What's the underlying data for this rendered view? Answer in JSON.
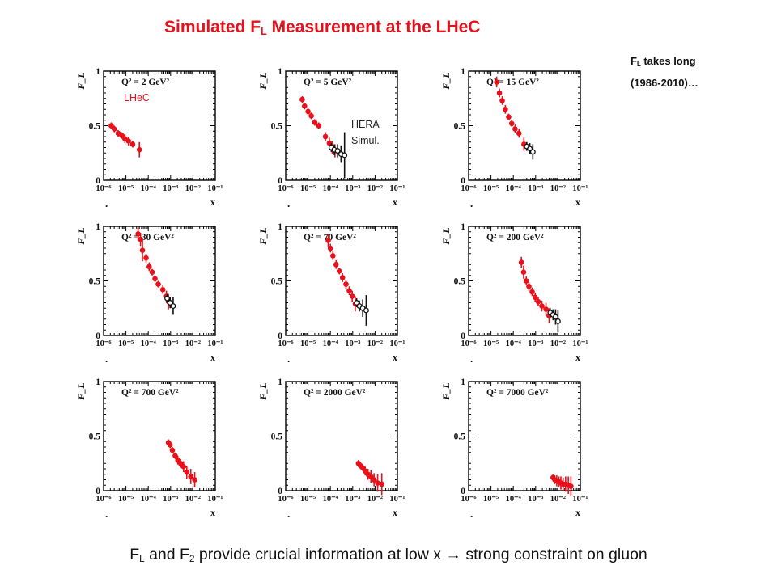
{
  "title": {
    "main": "Simulated F",
    "sub": "L",
    "rest": " Measurement at the LHeC"
  },
  "side_note": {
    "line1_main": "F",
    "line1_sub": "L",
    "line1_rest": " takes long",
    "line2": "(1986-2010)…"
  },
  "footer": {
    "p1": "F",
    "s1": "L",
    "p2": " and F",
    "s2": "2",
    "p3": " provide crucial information at low x ",
    "arrow": "→",
    "p4": " strong constraint on gluon"
  },
  "annotations": {
    "lhec": "LHeC",
    "hera_line1": "HERA",
    "hera_line2": "Simul."
  },
  "colors": {
    "lhec": "#e8101a",
    "hera": "#111111",
    "title": "#e8101a"
  },
  "chart_data": [
    {
      "type": "scatter",
      "log_x": true,
      "xlim": [
        "1e-6",
        "1e-1"
      ],
      "ylim": [
        0,
        1
      ],
      "xlabel": "x",
      "ylabel": "F_L",
      "q2_label": "Q² = 2 GeV²",
      "x_ticks": [
        "10⁻⁶",
        "10⁻⁵",
        "10⁻⁴",
        "10⁻³",
        "10⁻²",
        "10⁻¹"
      ],
      "y_ticks": [
        "0",
        "0.5",
        "1"
      ],
      "lhec": [
        [
          2.2e-06,
          0.5,
          0.03
        ],
        [
          3e-06,
          0.47,
          0.03
        ],
        [
          4.5e-06,
          0.43,
          0.03
        ],
        [
          6.5e-06,
          0.41,
          0.03
        ],
        [
          9e-06,
          0.38,
          0.04
        ],
        [
          1.3e-05,
          0.36,
          0.04
        ],
        [
          2e-05,
          0.33,
          0.03
        ],
        [
          4e-05,
          0.28,
          0.07
        ]
      ],
      "hera": []
    },
    {
      "type": "scatter",
      "log_x": true,
      "xlim": [
        "1e-6",
        "1e-1"
      ],
      "ylim": [
        0,
        1
      ],
      "xlabel": "x",
      "ylabel": "F_L",
      "q2_label": "Q² = 5 GeV²",
      "x_ticks": [
        "10⁻⁶",
        "10⁻⁵",
        "10⁻⁴",
        "10⁻³",
        "10⁻²",
        "10⁻¹"
      ],
      "y_ticks": [
        "0",
        "0.5",
        "1"
      ],
      "lhec": [
        [
          5.5e-06,
          0.74,
          0.03
        ],
        [
          7e-06,
          0.68,
          0.03
        ],
        [
          1e-05,
          0.63,
          0.03
        ],
        [
          1.4e-05,
          0.59,
          0.03
        ],
        [
          2e-05,
          0.53,
          0.03
        ],
        [
          3e-05,
          0.5,
          0.03
        ],
        [
          6e-05,
          0.4,
          0.04
        ],
        [
          9e-05,
          0.34,
          0.05
        ],
        [
          0.00012,
          0.3,
          0.06
        ],
        [
          0.00016,
          0.27,
          0.06
        ]
      ],
      "hera": [
        [
          0.00011,
          0.3,
          0.04
        ],
        [
          0.00015,
          0.28,
          0.05
        ],
        [
          0.00021,
          0.27,
          0.06
        ],
        [
          0.0003,
          0.24,
          0.08
        ],
        [
          0.00043,
          0.23,
          0.21
        ]
      ]
    },
    {
      "type": "scatter",
      "log_x": true,
      "xlim": [
        "1e-6",
        "1e-1"
      ],
      "ylim": [
        0,
        1
      ],
      "xlabel": "x",
      "ylabel": "F_L",
      "q2_label": "Q² = 15 GeV²",
      "x_ticks": [
        "10⁻⁶",
        "10⁻⁵",
        "10⁻⁴",
        "10⁻³",
        "10⁻²",
        "10⁻¹"
      ],
      "y_ticks": [
        "0",
        "0.5",
        "1"
      ],
      "lhec": [
        [
          1.8e-05,
          0.9,
          0.05
        ],
        [
          2.4e-05,
          0.8,
          0.04
        ],
        [
          3.2e-05,
          0.73,
          0.04
        ],
        [
          4.4e-05,
          0.65,
          0.04
        ],
        [
          6.2e-05,
          0.58,
          0.03
        ],
        [
          8.5e-05,
          0.52,
          0.03
        ],
        [
          0.00012,
          0.47,
          0.04
        ],
        [
          0.00018,
          0.43,
          0.04
        ],
        [
          0.0003,
          0.33,
          0.06
        ]
      ],
      "hera": [
        [
          0.0004,
          0.31,
          0.04
        ],
        [
          0.00055,
          0.29,
          0.05
        ],
        [
          0.00075,
          0.26,
          0.07
        ]
      ]
    },
    {
      "type": "scatter",
      "log_x": true,
      "xlim": [
        "1e-6",
        "1e-1"
      ],
      "ylim": [
        0,
        1
      ],
      "xlabel": "x",
      "ylabel": "F_L",
      "q2_label": "Q² = 30 GeV²",
      "x_ticks": [
        "10⁻⁶",
        "10⁻⁵",
        "10⁻⁴",
        "10⁻³",
        "10⁻²",
        "10⁻¹"
      ],
      "y_ticks": [
        "0",
        "0.5",
        "1"
      ],
      "lhec": [
        [
          3.5e-05,
          0.93,
          0.06
        ],
        [
          4.5e-05,
          0.88,
          0.06
        ],
        [
          5.5e-05,
          0.78,
          0.1
        ],
        [
          8e-05,
          0.71,
          0.04
        ],
        [
          0.00011,
          0.63,
          0.04
        ],
        [
          0.00015,
          0.58,
          0.03
        ],
        [
          0.0002,
          0.52,
          0.03
        ],
        [
          0.00028,
          0.47,
          0.03
        ],
        [
          0.00045,
          0.42,
          0.04
        ],
        [
          0.00065,
          0.36,
          0.05
        ],
        [
          0.0008,
          0.31,
          0.07
        ]
      ],
      "hera": [
        [
          0.0007,
          0.34,
          0.04
        ],
        [
          0.00095,
          0.3,
          0.05
        ],
        [
          0.0013,
          0.27,
          0.08
        ]
      ]
    },
    {
      "type": "scatter",
      "log_x": true,
      "xlim": [
        "1e-6",
        "1e-1"
      ],
      "ylim": [
        0,
        1
      ],
      "xlabel": "x",
      "ylabel": "F_L",
      "q2_label": "Q² = 70 GeV²",
      "x_ticks": [
        "10⁻⁶",
        "10⁻⁵",
        "10⁻⁴",
        "10⁻³",
        "10⁻²",
        "10⁻¹"
      ],
      "y_ticks": [
        "0",
        "0.5",
        "1"
      ],
      "lhec": [
        [
          8e-05,
          0.87,
          0.06
        ],
        [
          0.0001,
          0.8,
          0.04
        ],
        [
          0.00013,
          0.73,
          0.04
        ],
        [
          0.00018,
          0.65,
          0.04
        ],
        [
          0.00025,
          0.59,
          0.03
        ],
        [
          0.00035,
          0.53,
          0.04
        ],
        [
          0.0005,
          0.47,
          0.04
        ],
        [
          0.0007,
          0.41,
          0.04
        ],
        [
          0.00095,
          0.36,
          0.05
        ],
        [
          0.0013,
          0.29,
          0.07
        ]
      ],
      "hera": [
        [
          0.0015,
          0.3,
          0.04
        ],
        [
          0.002,
          0.27,
          0.05
        ],
        [
          0.0028,
          0.25,
          0.08
        ],
        [
          0.004,
          0.23,
          0.14
        ]
      ]
    },
    {
      "type": "scatter",
      "log_x": true,
      "xlim": [
        "1e-6",
        "1e-1"
      ],
      "ylim": [
        0,
        1
      ],
      "xlabel": "x",
      "ylabel": "F_L",
      "q2_label": "Q² = 200 GeV²",
      "x_ticks": [
        "10⁻⁶",
        "10⁻⁵",
        "10⁻⁴",
        "10⁻³",
        "10⁻²",
        "10⁻¹"
      ],
      "y_ticks": [
        "0",
        "0.5",
        "1"
      ],
      "lhec": [
        [
          0.00023,
          0.67,
          0.05
        ],
        [
          0.00029,
          0.58,
          0.06
        ],
        [
          0.00038,
          0.5,
          0.04
        ],
        [
          0.0005,
          0.45,
          0.04
        ],
        [
          0.0007,
          0.4,
          0.04
        ],
        [
          0.00095,
          0.35,
          0.04
        ],
        [
          0.0013,
          0.31,
          0.04
        ],
        [
          0.0019,
          0.27,
          0.05
        ],
        [
          0.0029,
          0.24,
          0.06
        ],
        [
          0.004,
          0.18,
          0.07
        ]
      ],
      "hera": [
        [
          0.0045,
          0.21,
          0.04
        ],
        [
          0.006,
          0.19,
          0.05
        ],
        [
          0.0078,
          0.17,
          0.07
        ],
        [
          0.01,
          0.13,
          0.1
        ]
      ]
    },
    {
      "type": "scatter",
      "log_x": true,
      "xlim": [
        "1e-6",
        "1e-1"
      ],
      "ylim": [
        0,
        1
      ],
      "xlabel": "x",
      "ylabel": "F_L",
      "q2_label": "Q² = 700 GeV²",
      "x_ticks": [
        "10⁻⁶",
        "10⁻⁵",
        "10⁻⁴",
        "10⁻³",
        "10⁻²",
        "10⁻¹"
      ],
      "y_ticks": [
        "0",
        "0.5",
        "1"
      ],
      "lhec": [
        [
          0.0008,
          0.44,
          0.03
        ],
        [
          0.00095,
          0.42,
          0.03
        ],
        [
          0.0012,
          0.37,
          0.03
        ],
        [
          0.0016,
          0.32,
          0.03
        ],
        [
          0.0021,
          0.28,
          0.04
        ],
        [
          0.0028,
          0.25,
          0.04
        ],
        [
          0.0038,
          0.22,
          0.05
        ],
        [
          0.0053,
          0.17,
          0.06
        ],
        [
          0.008,
          0.13,
          0.07
        ],
        [
          0.012,
          0.1,
          0.07
        ]
      ],
      "hera": []
    },
    {
      "type": "scatter",
      "log_x": true,
      "xlim": [
        "1e-6",
        "1e-1"
      ],
      "ylim": [
        0,
        1
      ],
      "xlabel": "x",
      "ylabel": "F_L",
      "q2_label": "Q² = 2000 GeV²",
      "x_ticks": [
        "10⁻⁶",
        "10⁻⁵",
        "10⁻⁴",
        "10⁻³",
        "10⁻²",
        "10⁻¹"
      ],
      "y_ticks": [
        "0",
        "0.5",
        "1"
      ],
      "lhec": [
        [
          0.0018,
          0.25,
          0.03
        ],
        [
          0.0022,
          0.23,
          0.03
        ],
        [
          0.0028,
          0.21,
          0.03
        ],
        [
          0.0036,
          0.18,
          0.04
        ],
        [
          0.0048,
          0.15,
          0.05
        ],
        [
          0.0065,
          0.13,
          0.06
        ],
        [
          0.009,
          0.1,
          0.06
        ],
        [
          0.013,
          0.07,
          0.08
        ],
        [
          0.02,
          0.06,
          0.1
        ]
      ],
      "hera": []
    },
    {
      "type": "scatter",
      "log_x": true,
      "xlim": [
        "1e-6",
        "1e-1"
      ],
      "ylim": [
        0,
        1
      ],
      "xlabel": "x",
      "ylabel": "F_L",
      "q2_label": "Q² = 7000 GeV²",
      "x_ticks": [
        "10⁻⁶",
        "10⁻⁵",
        "10⁻⁴",
        "10⁻³",
        "10⁻²",
        "10⁻¹"
      ],
      "y_ticks": [
        "0",
        "0.5",
        "1"
      ],
      "lhec": [
        [
          0.006,
          0.12,
          0.03
        ],
        [
          0.0072,
          0.1,
          0.04
        ],
        [
          0.0088,
          0.09,
          0.05
        ],
        [
          0.011,
          0.08,
          0.05
        ],
        [
          0.0135,
          0.07,
          0.06
        ],
        [
          0.017,
          0.06,
          0.06
        ],
        [
          0.022,
          0.06,
          0.07
        ],
        [
          0.029,
          0.05,
          0.08
        ],
        [
          0.038,
          0.04,
          0.09
        ]
      ],
      "hera": []
    }
  ]
}
